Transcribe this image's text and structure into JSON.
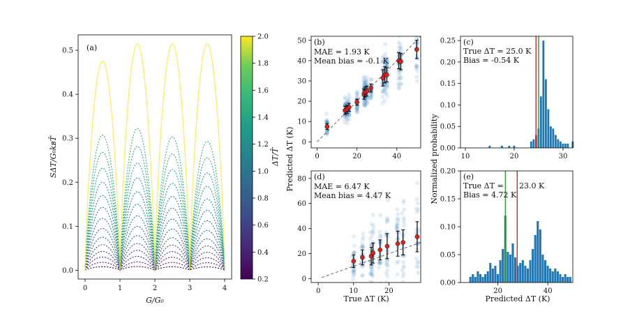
{
  "figure": {
    "panel_a": {
      "label": "(a)",
      "xlabel": "G/G₀",
      "ylabel": "SΔT/G₀kʙT̄",
      "xticks": [
        "0",
        "1",
        "2",
        "3",
        "4"
      ],
      "yticks": [
        "0.0",
        "0.1",
        "0.2",
        "0.3",
        "0.4",
        "0.5"
      ],
      "colorbar": {
        "label": "ΔT/T̄",
        "ticks": [
          "0.2",
          "0.4",
          "0.6",
          "0.8",
          "1.0",
          "1.2",
          "1.4",
          "1.6",
          "1.8",
          "2.0"
        ]
      }
    },
    "panel_b": {
      "label": "(b)",
      "line1": "MAE = 1.93 K",
      "line2": "Mean bias = -0.1 K",
      "yticks": [
        "0",
        "10",
        "20",
        "30",
        "40",
        "50"
      ],
      "xticks": [
        "0",
        "20",
        "40"
      ]
    },
    "panel_c": {
      "label": "(c)",
      "line1": "True ΔT = 25.0 K",
      "line2": "Bias = -0.54 K",
      "yticks": [
        "0.00",
        "0.05",
        "0.10",
        "0.15",
        "0.20",
        "0.25"
      ],
      "xticks": [
        "10",
        "20",
        "30"
      ]
    },
    "panel_d": {
      "label": "(d)",
      "line1": "MAE = 6.47 K",
      "line2": "Mean bias = 4.47 K",
      "yticks": [
        "0",
        "20",
        "40",
        "60",
        "80"
      ],
      "xticks": [
        "0",
        "10",
        "20"
      ]
    },
    "panel_e": {
      "label": "(e)",
      "line1a": "True ΔT =",
      "line1b": "23.0 K",
      "line2": "Bias = 4.72 K",
      "yticks": [
        "0.00",
        "0.05",
        "0.10",
        "0.15",
        "0.20"
      ],
      "xticks": [
        "20",
        "40"
      ]
    },
    "shared": {
      "ylabel_bd": "Predicted ΔT (K)",
      "xlabel_bd": "True ΔT (K)",
      "ylabel_ce": "Normalized probability",
      "xlabel_ce": "Predicted ΔT (K)"
    }
  },
  "chart_data": [
    {
      "type": "line",
      "title": "(a)",
      "xlabel": "G/G0",
      "ylabel": "S_dT / G0 kB T",
      "xlim": [
        0,
        4
      ],
      "ylim": [
        -0.02,
        0.535
      ],
      "series_param": "dT/T",
      "series_values": [
        0.2,
        0.35,
        0.45,
        0.55,
        0.65,
        0.75,
        0.85,
        0.95,
        1.05,
        1.15,
        1.25,
        1.35,
        1.45,
        1.55,
        2.0
      ],
      "peak_heights": [
        0.008,
        0.018,
        0.03,
        0.043,
        0.058,
        0.075,
        0.095,
        0.118,
        0.143,
        0.17,
        0.2,
        0.232,
        0.268,
        0.307,
        0.49
      ],
      "period": 1.0
    },
    {
      "type": "scatter",
      "title": "(b)",
      "xlabel": "True dT (K)",
      "ylabel": "Predicted dT (K)",
      "xlim": [
        -3,
        52
      ],
      "ylim": [
        -3,
        52
      ],
      "mean_points": {
        "x": [
          5,
          14,
          15,
          16,
          20,
          23.5,
          24,
          25,
          27,
          33,
          34,
          35,
          41,
          42,
          50
        ],
        "y": [
          7.5,
          15.5,
          16,
          17,
          19.5,
          23.5,
          24.5,
          25,
          26.5,
          31.5,
          33,
          33,
          40,
          39.5,
          45.5
        ],
        "err": [
          1.5,
          2,
          2,
          2,
          1.5,
          2.5,
          2.5,
          2.5,
          2,
          4,
          4,
          3.5,
          4,
          4,
          4.5
        ]
      },
      "mae": 1.93,
      "mean_bias": -0.1
    },
    {
      "type": "bar",
      "title": "(c)",
      "xlabel": "Predicted dT (K)",
      "ylabel": "Normalized probability",
      "xlim": [
        9,
        32
      ],
      "ylim": [
        0,
        0.26
      ],
      "bin_centers": [
        15,
        17.5,
        19,
        20,
        23.5,
        24,
        24.5,
        25,
        25.5,
        26,
        26.5,
        27,
        27.5,
        28,
        28.5,
        29,
        29.5,
        30,
        30.5,
        31,
        32
      ],
      "values": [
        0.005,
        0.005,
        0.005,
        0.005,
        0.015,
        0.02,
        0.03,
        0.045,
        0.12,
        0.25,
        0.16,
        0.09,
        0.05,
        0.045,
        0.03,
        0.02,
        0.015,
        0.01,
        0.01,
        0.01,
        0.015
      ],
      "true_line": 25.0,
      "mean_line": 24.46
    },
    {
      "type": "scatter",
      "title": "(d)",
      "xlabel": "True dT (K)",
      "ylabel": "Predicted dT (K)",
      "xlim": [
        -2,
        29
      ],
      "ylim": [
        -3,
        86
      ],
      "mean_points": {
        "x": [
          10,
          12.5,
          15,
          15.5,
          17.5,
          19.5,
          22.5,
          24,
          28
        ],
        "y": [
          14,
          17,
          18,
          20.5,
          23,
          26,
          28,
          29,
          33.5
        ],
        "err": [
          5,
          6,
          7,
          8,
          8,
          10,
          10,
          10,
          12
        ]
      },
      "mae": 6.47,
      "mean_bias": 4.47
    },
    {
      "type": "bar",
      "title": "(e)",
      "xlabel": "Predicted dT (K)",
      "ylabel": "Normalized probability",
      "xlim": [
        5,
        50
      ],
      "ylim": [
        0,
        0.2
      ],
      "bin_centers": [
        9,
        10,
        11,
        12,
        13,
        14,
        15,
        16,
        17,
        18,
        19,
        20,
        21,
        22,
        23,
        24,
        25,
        26,
        27,
        28,
        29,
        30,
        31,
        32,
        33,
        34,
        35,
        36,
        37,
        38,
        39,
        40,
        41,
        42,
        43,
        44,
        45,
        46,
        47,
        48,
        49
      ],
      "values": [
        0.01,
        0.015,
        0.01,
        0.02,
        0.015,
        0.01,
        0.015,
        0.02,
        0.035,
        0.025,
        0.03,
        0.015,
        0.04,
        0.06,
        0.12,
        0.055,
        0.05,
        0.07,
        0.045,
        0.03,
        0.035,
        0.04,
        0.03,
        0.025,
        0.04,
        0.06,
        0.085,
        0.11,
        0.095,
        0.05,
        0.04,
        0.03,
        0.025,
        0.02,
        0.025,
        0.02,
        0.015,
        0.01,
        0.015,
        0.01,
        0.01
      ],
      "true_line": 23.0,
      "mean_line": 27.72
    }
  ]
}
